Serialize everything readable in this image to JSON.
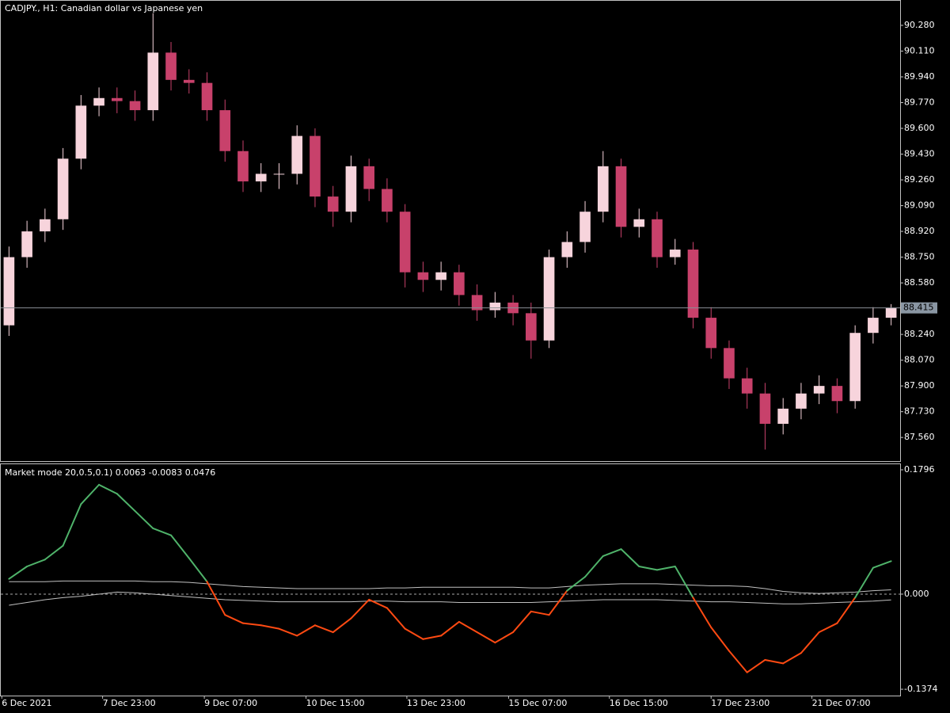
{
  "chart_data": [
    {
      "type": "candlestick",
      "title": "CADJPY., H1:  Canadian dollar vs Japanese yen",
      "up_color": "#f7d4dc",
      "down_color": "#c8416b",
      "open": [
        88.3,
        88.75,
        88.92,
        89.0,
        89.4,
        89.75,
        89.8,
        89.78,
        89.72,
        90.1,
        89.92,
        89.9,
        89.72,
        89.45,
        89.25,
        89.3,
        89.3,
        89.55,
        89.15,
        89.05,
        89.35,
        89.2,
        89.05,
        88.65,
        88.6,
        88.65,
        88.5,
        88.4,
        88.45,
        88.38,
        88.2,
        88.75,
        88.85,
        89.05,
        89.35,
        88.95,
        89.0,
        88.75,
        88.8,
        88.35,
        88.15,
        87.95,
        87.85,
        87.65,
        87.75,
        87.85,
        87.9,
        87.8,
        88.25,
        88.35
      ],
      "high": [
        88.82,
        88.99,
        89.07,
        89.47,
        89.82,
        89.87,
        89.87,
        89.85,
        90.36,
        90.17,
        89.99,
        89.97,
        89.79,
        89.52,
        89.37,
        89.37,
        89.62,
        89.6,
        89.22,
        89.42,
        89.4,
        89.27,
        89.1,
        88.72,
        88.72,
        88.7,
        88.57,
        88.52,
        88.5,
        88.45,
        88.8,
        88.92,
        89.12,
        89.45,
        89.4,
        89.07,
        89.05,
        88.87,
        88.85,
        88.42,
        88.2,
        88.02,
        87.92,
        87.82,
        87.92,
        87.97,
        87.95,
        88.3,
        88.42,
        88.44
      ],
      "low": [
        88.23,
        88.68,
        88.85,
        88.93,
        89.33,
        89.68,
        89.7,
        89.65,
        89.65,
        89.85,
        89.83,
        89.65,
        89.38,
        89.18,
        89.18,
        89.2,
        89.23,
        89.08,
        88.95,
        88.98,
        89.12,
        88.98,
        88.55,
        88.52,
        88.53,
        88.43,
        88.33,
        88.35,
        88.3,
        88.08,
        88.15,
        88.68,
        88.78,
        88.98,
        88.88,
        88.88,
        88.68,
        88.7,
        88.28,
        88.08,
        87.88,
        87.75,
        87.48,
        87.58,
        87.68,
        87.78,
        87.72,
        87.75,
        88.18,
        88.3
      ],
      "close": [
        88.75,
        88.92,
        89.0,
        89.4,
        89.75,
        89.8,
        89.78,
        89.72,
        90.1,
        89.92,
        89.9,
        89.72,
        89.45,
        89.25,
        89.3,
        89.3,
        89.55,
        89.15,
        89.05,
        89.35,
        89.2,
        89.05,
        88.65,
        88.6,
        88.65,
        88.5,
        88.4,
        88.45,
        88.38,
        88.2,
        88.75,
        88.85,
        89.05,
        89.35,
        88.95,
        89.0,
        88.75,
        88.8,
        88.35,
        88.15,
        87.95,
        87.85,
        87.65,
        87.75,
        87.85,
        87.9,
        87.8,
        88.25,
        88.35,
        88.415
      ],
      "current_price": 88.415,
      "xlim": [
        0,
        50
      ],
      "ylim": [
        87.404,
        90.442
      ],
      "yticks": [
        {
          "value": 90.28,
          "label": "90.280"
        },
        {
          "value": 90.11,
          "label": "90.110"
        },
        {
          "value": 89.94,
          "label": "89.940"
        },
        {
          "value": 89.77,
          "label": "89.770"
        },
        {
          "value": 89.6,
          "label": "89.600"
        },
        {
          "value": 89.43,
          "label": "89.430"
        },
        {
          "value": 89.26,
          "label": "89.260"
        },
        {
          "value": 89.09,
          "label": "89.090"
        },
        {
          "value": 88.92,
          "label": "88.920"
        },
        {
          "value": 88.75,
          "label": "88.750"
        },
        {
          "value": 88.58,
          "label": "88.580"
        },
        {
          "value": 88.24,
          "label": "88.240"
        },
        {
          "value": 88.07,
          "label": "88.070"
        },
        {
          "value": 87.9,
          "label": "87.900"
        },
        {
          "value": 87.73,
          "label": "87.730"
        },
        {
          "value": 87.56,
          "label": "87.560"
        }
      ]
    },
    {
      "type": "line",
      "title": "Market mode 20,0.5,0.1) 0.0063 -0.0083 0.0476",
      "zero_line": true,
      "series": [
        {
          "color": "#c0c0c0",
          "values": [
            0.018,
            0.018,
            0.018,
            0.019,
            0.019,
            0.019,
            0.019,
            0.019,
            0.018,
            0.018,
            0.017,
            0.015,
            0.013,
            0.011,
            0.01,
            0.009,
            0.008,
            0.008,
            0.008,
            0.008,
            0.008,
            0.009,
            0.009,
            0.01,
            0.01,
            0.01,
            0.01,
            0.01,
            0.01,
            0.009,
            0.009,
            0.011,
            0.013,
            0.014,
            0.015,
            0.015,
            0.015,
            0.014,
            0.013,
            0.012,
            0.012,
            0.011,
            0.008,
            0.004,
            0.002,
            0.001,
            0.002,
            0.003,
            0.005,
            0.0063
          ]
        },
        {
          "color": "#c0c0c0",
          "values": [
            -0.016,
            -0.012,
            -0.008,
            -0.005,
            -0.003,
            0.0,
            0.003,
            0.002,
            0.0,
            -0.002,
            -0.004,
            -0.006,
            -0.008,
            -0.009,
            -0.01,
            -0.011,
            -0.011,
            -0.011,
            -0.011,
            -0.011,
            -0.01,
            -0.01,
            -0.011,
            -0.011,
            -0.011,
            -0.012,
            -0.012,
            -0.012,
            -0.012,
            -0.012,
            -0.011,
            -0.01,
            -0.009,
            -0.008,
            -0.008,
            -0.008,
            -0.008,
            -0.009,
            -0.01,
            -0.011,
            -0.011,
            -0.012,
            -0.013,
            -0.014,
            -0.014,
            -0.013,
            -0.012,
            -0.011,
            -0.01,
            -0.0083
          ]
        },
        {
          "up_color": "#4fb36a",
          "down_color": "#ff4a12",
          "values": [
            0.022,
            0.04,
            0.05,
            0.07,
            0.13,
            0.158,
            0.145,
            0.12,
            0.095,
            0.085,
            0.052,
            0.018,
            -0.03,
            -0.042,
            -0.045,
            -0.05,
            -0.06,
            -0.045,
            -0.055,
            -0.035,
            -0.008,
            -0.02,
            -0.05,
            -0.065,
            -0.06,
            -0.04,
            -0.055,
            -0.07,
            -0.055,
            -0.025,
            -0.03,
            0.005,
            0.025,
            0.055,
            0.065,
            0.04,
            0.035,
            0.04,
            -0.005,
            -0.048,
            -0.082,
            -0.113,
            -0.095,
            -0.1,
            -0.085,
            -0.055,
            -0.042,
            -0.005,
            0.038,
            0.0476
          ]
        }
      ],
      "xlim": [
        0,
        50
      ],
      "xticks": [
        {
          "value": 0.1,
          "label": "6 Dec 2021"
        },
        {
          "value": 5.7,
          "label": "7 Dec 23:00"
        },
        {
          "value": 11.35,
          "label": "9 Dec 07:00"
        },
        {
          "value": 17,
          "label": "10 Dec 15:00"
        },
        {
          "value": 22.6,
          "label": "13 Dec 23:00"
        },
        {
          "value": 28.25,
          "label": "15 Dec 07:00"
        },
        {
          "value": 33.85,
          "label": "16 Dec 15:00"
        },
        {
          "value": 39.5,
          "label": "17 Dec 23:00"
        },
        {
          "value": 45.1,
          "label": "21 Dec 07:00"
        }
      ],
      "ylim": [
        -0.1465,
        0.1876
      ],
      "yticks": [
        0.1796,
        {
          "value": 0,
          "label": "0.000"
        },
        -0.1374
      ]
    }
  ]
}
